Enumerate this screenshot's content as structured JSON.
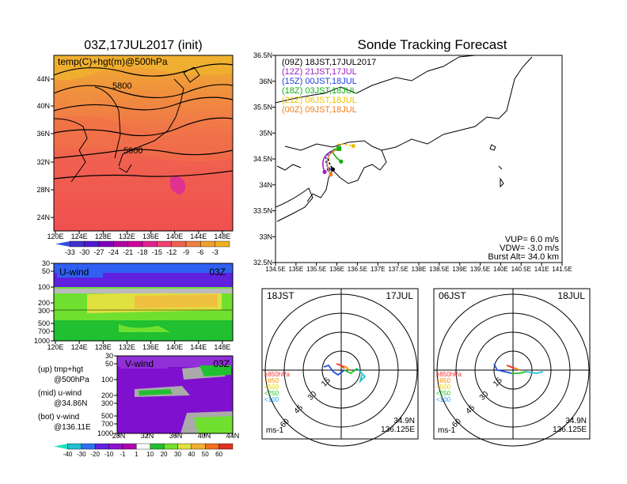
{
  "left_panel": {
    "title": "03Z,17JUL2017 (init)",
    "map_label": "temp(C)+hgt(m)@500hPa",
    "contour_labels": [
      "5800",
      "5900"
    ],
    "lat_ticks": [
      "44N",
      "40N",
      "36N",
      "32N",
      "28N",
      "24N"
    ],
    "lon_ticks": [
      "120E",
      "124E",
      "128E",
      "132E",
      "136E",
      "140E",
      "144E",
      "148E"
    ],
    "temp_scale": [
      "-33",
      "-30",
      "-27",
      "-24",
      "-21",
      "-18",
      "-15",
      "-12",
      "-9",
      "-6",
      "-3"
    ]
  },
  "u_panel": {
    "label": "U-wind",
    "time": "03Z",
    "p_ticks": [
      "30",
      "50",
      "100",
      "200",
      "300",
      "500",
      "700",
      "1000"
    ],
    "lon_ticks": [
      "120E",
      "124E",
      "128E",
      "132E",
      "136E",
      "140E",
      "144E",
      "148E"
    ]
  },
  "v_panel": {
    "label": "V-wind",
    "time": "03Z",
    "p_ticks": [
      "30",
      "50",
      "100",
      "200",
      "300",
      "500",
      "700",
      "1000"
    ],
    "lat_ticks": [
      "28N",
      "32N",
      "36N",
      "40N",
      "44N"
    ]
  },
  "side_notes": {
    "up": "(up) tmp+hgt",
    "up2": "@500hPa",
    "mid": "(mid) u-wind",
    "mid2": "@34.86N",
    "bot": "(bot) v-wind",
    "bot2": "@136.11E"
  },
  "wind_scale": [
    "-40",
    "-30",
    "-20",
    "-10",
    "-1",
    "1",
    "10",
    "20",
    "30",
    "40",
    "50",
    "60"
  ],
  "right_panel": {
    "title": "Sonde Tracking Forecast",
    "legend": [
      {
        "label": "(09Z)  18JST,17JUL2017",
        "color": "#000000"
      },
      {
        "label": "(12Z)  21JST,17JUL",
        "color": "#a020c0"
      },
      {
        "label": "(15Z)  00JST,18JUL",
        "color": "#2040e0"
      },
      {
        "label": "(18Z)  03JST,18JUL",
        "color": "#10b010"
      },
      {
        "label": "(21Z)  06JST,18JUL",
        "color": "#f0c000"
      },
      {
        "label": "(00Z)  09JST,18JUL",
        "color": "#f08020"
      }
    ],
    "lat_ticks": [
      "36.5N",
      "36N",
      "35.5N",
      "35N",
      "34.5N",
      "34N",
      "33.5N",
      "33N",
      "32.5N"
    ],
    "lon_ticks": [
      "134.5E",
      "135E",
      "135.5E",
      "136E",
      "136.5E",
      "137E",
      "137.5E",
      "138E",
      "138.5E",
      "139E",
      "139.5E",
      "140E",
      "140.5E",
      "141E",
      "141.5E"
    ],
    "params": [
      "VUP=  6.0  m/s",
      "VDW= -3.0  m/s",
      "Burst Alt=  34.0  km"
    ]
  },
  "hodo_left": {
    "time": "18JST",
    "date": "17JUL",
    "ring_labels": [
      "15",
      "30",
      "45",
      "60"
    ],
    "unit": "ms-1",
    "lat": "34.9N",
    "lon": "136.125E",
    "levels": [
      "≥850hPa",
      "<850",
      "<500",
      "<250",
      "<100"
    ]
  },
  "hodo_right": {
    "time": "06JST",
    "date": "18JUL",
    "ring_labels": [
      "15",
      "30",
      "45",
      "60"
    ],
    "unit": "ms-1",
    "lat": "34.9N",
    "lon": "136.125E",
    "levels": [
      "≥850hPa",
      "<850",
      "<500",
      "<250",
      "<100"
    ]
  },
  "colors": {
    "level_colors": [
      "#ff3030",
      "#ff9000",
      "#e0d000",
      "#20c020",
      "#20a0ff"
    ],
    "wind_colors": [
      "#20c0d0",
      "#3070f0",
      "#6020e0",
      "#9010d0",
      "#b000b0",
      "#ffffff",
      "#20c030",
      "#70e030",
      "#e0e040",
      "#f0b030",
      "#f07020",
      "#e03020"
    ],
    "temp_colors": [
      "#4030d0",
      "#5018d0",
      "#8000c0",
      "#b000a0",
      "#d000a0",
      "#e02090",
      "#f04070",
      "#f06050",
      "#f08040",
      "#f0a030",
      "#f0b020"
    ]
  },
  "chart_data": [
    {
      "type": "heatmap",
      "title": "03Z,17JUL2017 (init)",
      "field": "temp(C)+hgt(m)@500hPa",
      "xlim": [
        120,
        150
      ],
      "ylim": [
        22,
        48
      ],
      "contours": [
        {
          "value": 5800
        },
        {
          "value": 5900
        }
      ]
    },
    {
      "type": "line",
      "title": "Sonde Tracking Forecast",
      "xlim": [
        134.5,
        141.5
      ],
      "ylim": [
        32.5,
        36.5
      ],
      "series": [
        {
          "name": "(09Z)  18JST,17JUL2017",
          "end": [
            135.9,
            34.3
          ]
        },
        {
          "name": "(12Z)  21JST,17JUL",
          "end": [
            135.7,
            34.25
          ]
        },
        {
          "name": "(15Z)  00JST,18JUL",
          "end": [
            135.8,
            34.3
          ]
        },
        {
          "name": "(18Z)  03JST,18JUL",
          "end": [
            136.1,
            34.45
          ]
        },
        {
          "name": "(21Z)  06JST,18JUL",
          "end": [
            136.4,
            34.75
          ]
        },
        {
          "name": "(00Z)  09JST,18JUL",
          "end": [
            135.85,
            34.2
          ]
        }
      ]
    }
  ]
}
